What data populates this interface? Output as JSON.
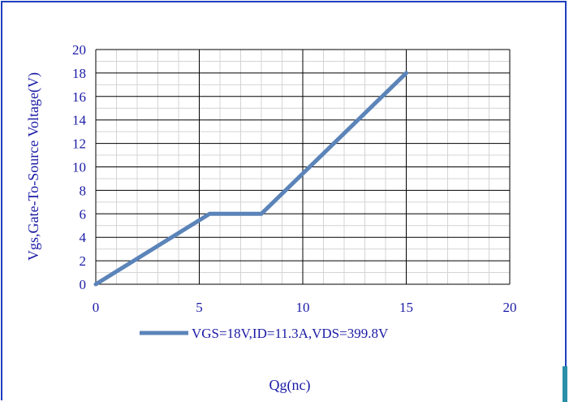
{
  "chart_data": {
    "type": "line",
    "title": "",
    "xlabel": "Qg(nc)",
    "ylabel": "Vgs,Gate-To-Source Voltage(V)",
    "xlim": [
      0,
      20
    ],
    "ylim": [
      0,
      20
    ],
    "x_ticks": [
      0,
      5,
      10,
      15,
      20
    ],
    "y_ticks": [
      0,
      2,
      4,
      6,
      8,
      10,
      12,
      14,
      16,
      18,
      20
    ],
    "grid": true,
    "legend_position": "bottom",
    "series": [
      {
        "name": "VGS=18V,ID=11.3A,VDS=399.8V",
        "color": "#5b84b9",
        "x": [
          0,
          5.5,
          8,
          15
        ],
        "y": [
          0,
          6,
          6,
          18
        ]
      }
    ]
  }
}
